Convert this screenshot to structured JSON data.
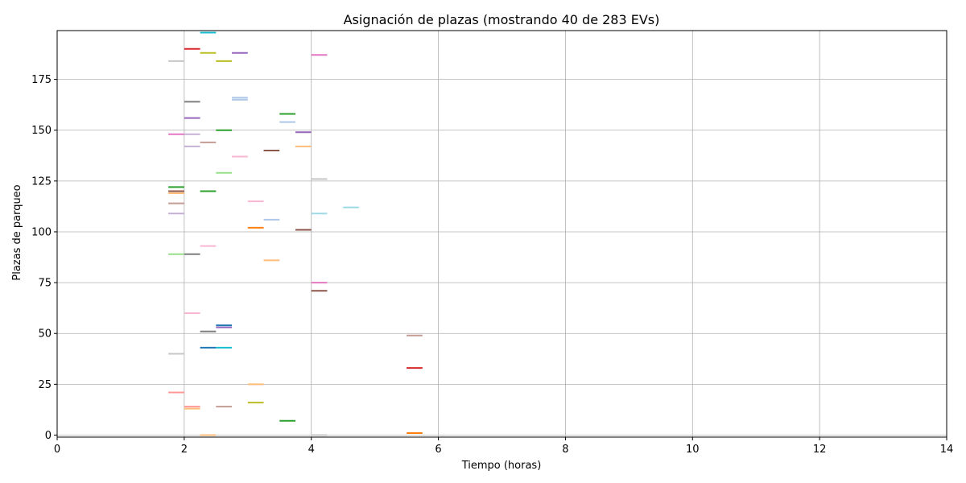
{
  "chart_data": {
    "type": "scatter",
    "title": "Asignación de plazas (mostrando 40 de 283 EVs)",
    "xlabel": "Tiempo (horas)",
    "ylabel": "Plazas de parqueo",
    "xlim": [
      0,
      14
    ],
    "ylim": [
      -1,
      199
    ],
    "xticks": [
      0,
      2,
      4,
      6,
      8,
      10,
      12,
      14
    ],
    "yticks": [
      0,
      25,
      50,
      75,
      100,
      125,
      150,
      175
    ],
    "grid": true,
    "legend": "none",
    "segments": [
      {
        "x0": 2.25,
        "x1": 2.5,
        "y": 198,
        "color": "#17becf"
      },
      {
        "x0": 2.0,
        "x1": 2.25,
        "y": 190,
        "color": "#d62728"
      },
      {
        "x0": 2.25,
        "x1": 2.5,
        "y": 188,
        "color": "#bcbd22"
      },
      {
        "x0": 2.75,
        "x1": 3.0,
        "y": 188,
        "color": "#9467bd"
      },
      {
        "x0": 4.0,
        "x1": 4.25,
        "y": 187,
        "color": "#e377c2"
      },
      {
        "x0": 1.75,
        "x1": 2.0,
        "y": 184,
        "color": "#c7c7c7"
      },
      {
        "x0": 2.5,
        "x1": 2.75,
        "y": 184,
        "color": "#bcbd22"
      },
      {
        "x0": 2.75,
        "x1": 3.0,
        "y": 166,
        "color": "#aec7e8"
      },
      {
        "x0": 2.75,
        "x1": 3.0,
        "y": 165,
        "color": "#aec7e8"
      },
      {
        "x0": 2.0,
        "x1": 2.25,
        "y": 164,
        "color": "#7f7f7f"
      },
      {
        "x0": 3.5,
        "x1": 3.75,
        "y": 158,
        "color": "#2ca02c"
      },
      {
        "x0": 2.0,
        "x1": 2.25,
        "y": 156,
        "color": "#9467bd"
      },
      {
        "x0": 3.5,
        "x1": 3.75,
        "y": 154,
        "color": "#aec7e8"
      },
      {
        "x0": 2.5,
        "x1": 2.75,
        "y": 150,
        "color": "#2ca02c"
      },
      {
        "x0": 3.75,
        "x1": 4.0,
        "y": 149,
        "color": "#9467bd"
      },
      {
        "x0": 1.75,
        "x1": 2.0,
        "y": 148,
        "color": "#e377c2"
      },
      {
        "x0": 2.0,
        "x1": 2.25,
        "y": 148,
        "color": "#c5b0d5"
      },
      {
        "x0": 2.25,
        "x1": 2.5,
        "y": 144,
        "color": "#c49c94"
      },
      {
        "x0": 2.0,
        "x1": 2.25,
        "y": 142,
        "color": "#c5b0d5"
      },
      {
        "x0": 3.75,
        "x1": 4.0,
        "y": 142,
        "color": "#ffbb78"
      },
      {
        "x0": 3.25,
        "x1": 3.5,
        "y": 140,
        "color": "#8c564b"
      },
      {
        "x0": 2.75,
        "x1": 3.0,
        "y": 137,
        "color": "#f7b6d2"
      },
      {
        "x0": 2.5,
        "x1": 2.75,
        "y": 129,
        "color": "#98df8a"
      },
      {
        "x0": 4.0,
        "x1": 4.25,
        "y": 126,
        "color": "#c7c7c7"
      },
      {
        "x0": 1.75,
        "x1": 2.0,
        "y": 122,
        "color": "#2ca02c"
      },
      {
        "x0": 1.75,
        "x1": 2.0,
        "y": 120,
        "color": "#8c564b"
      },
      {
        "x0": 2.25,
        "x1": 2.5,
        "y": 120,
        "color": "#2ca02c"
      },
      {
        "x0": 1.75,
        "x1": 2.0,
        "y": 119,
        "color": "#ffbb78"
      },
      {
        "x0": 3.0,
        "x1": 3.25,
        "y": 115,
        "color": "#f7b6d2"
      },
      {
        "x0": 1.75,
        "x1": 2.0,
        "y": 114,
        "color": "#c49c94"
      },
      {
        "x0": 4.5,
        "x1": 4.75,
        "y": 112,
        "color": "#9edae5"
      },
      {
        "x0": 1.75,
        "x1": 2.0,
        "y": 109,
        "color": "#c5b0d5"
      },
      {
        "x0": 4.0,
        "x1": 4.25,
        "y": 109,
        "color": "#9edae5"
      },
      {
        "x0": 3.25,
        "x1": 3.5,
        "y": 106,
        "color": "#aec7e8"
      },
      {
        "x0": 3.0,
        "x1": 3.25,
        "y": 102,
        "color": "#ff7f0e"
      },
      {
        "x0": 3.75,
        "x1": 4.0,
        "y": 101,
        "color": "#8c564b"
      },
      {
        "x0": 2.25,
        "x1": 2.5,
        "y": 93,
        "color": "#f7b6d2"
      },
      {
        "x0": 1.75,
        "x1": 2.0,
        "y": 89,
        "color": "#98df8a"
      },
      {
        "x0": 2.0,
        "x1": 2.25,
        "y": 89,
        "color": "#7f7f7f"
      },
      {
        "x0": 3.25,
        "x1": 3.5,
        "y": 86,
        "color": "#ffbb78"
      },
      {
        "x0": 4.0,
        "x1": 4.25,
        "y": 75,
        "color": "#e377c2"
      },
      {
        "x0": 4.0,
        "x1": 4.25,
        "y": 71,
        "color": "#8c564b"
      },
      {
        "x0": 2.0,
        "x1": 2.25,
        "y": 60,
        "color": "#f7b6d2"
      },
      {
        "x0": 2.5,
        "x1": 2.75,
        "y": 54,
        "color": "#1f77b4"
      },
      {
        "x0": 2.5,
        "x1": 2.75,
        "y": 53,
        "color": "#9467bd"
      },
      {
        "x0": 2.25,
        "x1": 2.5,
        "y": 51,
        "color": "#7f7f7f"
      },
      {
        "x0": 5.5,
        "x1": 5.75,
        "y": 49,
        "color": "#c49c94"
      },
      {
        "x0": 2.25,
        "x1": 2.5,
        "y": 43,
        "color": "#1f77b4"
      },
      {
        "x0": 2.5,
        "x1": 2.75,
        "y": 43,
        "color": "#17becf"
      },
      {
        "x0": 1.75,
        "x1": 2.0,
        "y": 40,
        "color": "#c7c7c7"
      },
      {
        "x0": 5.5,
        "x1": 5.75,
        "y": 33,
        "color": "#d62728"
      },
      {
        "x0": 3.0,
        "x1": 3.25,
        "y": 25,
        "color": "#ffbb78"
      },
      {
        "x0": 1.75,
        "x1": 2.0,
        "y": 21,
        "color": "#ff9896"
      },
      {
        "x0": 3.0,
        "x1": 3.25,
        "y": 16,
        "color": "#bcbd22"
      },
      {
        "x0": 2.0,
        "x1": 2.25,
        "y": 14,
        "color": "#ff9896"
      },
      {
        "x0": 2.5,
        "x1": 2.75,
        "y": 14,
        "color": "#c49c94"
      },
      {
        "x0": 2.0,
        "x1": 2.25,
        "y": 13,
        "color": "#ffbb78"
      },
      {
        "x0": 3.5,
        "x1": 3.75,
        "y": 7,
        "color": "#2ca02c"
      },
      {
        "x0": 5.5,
        "x1": 5.75,
        "y": 1,
        "color": "#ff7f0e"
      },
      {
        "x0": 2.25,
        "x1": 2.5,
        "y": 0,
        "color": "#ffbb78"
      },
      {
        "x0": 4.0,
        "x1": 4.25,
        "y": 0,
        "color": "#c7c7c7"
      }
    ]
  }
}
